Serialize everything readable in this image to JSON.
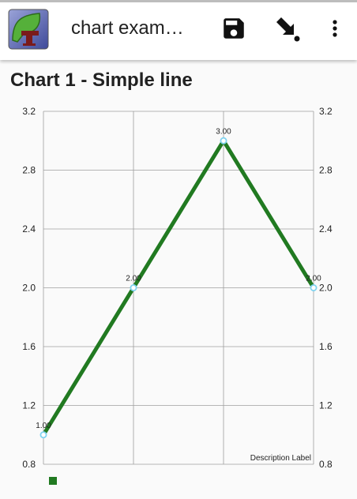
{
  "app": {
    "title": "chart exam…",
    "icons": [
      "app-logo-icon",
      "save-icon",
      "download-arrow-icon",
      "more-vert-icon"
    ]
  },
  "page": {
    "chart_title": "Chart 1 - Simple line"
  },
  "colors": {
    "line": "#217a21",
    "point": "#7fd3f0",
    "grid": "#9e9e9e",
    "appbar": "#ffffff"
  },
  "chart_data": {
    "type": "line",
    "title": "",
    "x": [
      0,
      1,
      2,
      3
    ],
    "series": [
      {
        "values": [
          1.0,
          2.0,
          3.0,
          2.0
        ],
        "labels": [
          "1.00",
          "2.00",
          "3.00",
          "2.00"
        ]
      }
    ],
    "ylim": [
      0.8,
      3.2
    ],
    "yticks": [
      "0.8",
      "1.2",
      "1.6",
      "2.0",
      "2.4",
      "2.8",
      "3.2"
    ],
    "y_axes": "left-and-right",
    "grid": true,
    "description": "Description Label",
    "legend": "bottom-left"
  }
}
